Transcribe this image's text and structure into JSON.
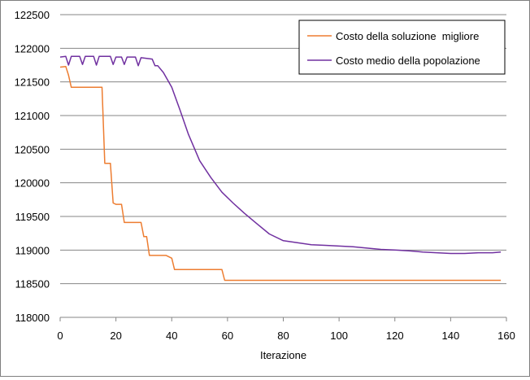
{
  "chart_data": {
    "type": "line",
    "title": "",
    "xlabel": "Iterazione",
    "ylabel": "",
    "xlim": [
      0,
      160
    ],
    "ylim": [
      118000,
      122500
    ],
    "xticks": [
      "0",
      "20",
      "40",
      "60",
      "80",
      "100",
      "120",
      "140",
      "160"
    ],
    "yticks": [
      "118000",
      "118500",
      "119000",
      "119500",
      "120000",
      "120500",
      "121000",
      "121500",
      "122000",
      "122500"
    ],
    "grid": "horizontal",
    "legend_position": "top-right",
    "series": [
      {
        "name": "Costo della soluzione  migliore",
        "color": "#ed7d31",
        "points": [
          [
            0,
            121720
          ],
          [
            2,
            121730
          ],
          [
            3,
            121600
          ],
          [
            4,
            121420
          ],
          [
            15,
            121420
          ],
          [
            16,
            120290
          ],
          [
            18,
            120290
          ],
          [
            19,
            119700
          ],
          [
            20,
            119680
          ],
          [
            22,
            119680
          ],
          [
            23,
            119410
          ],
          [
            29,
            119410
          ],
          [
            30,
            119200
          ],
          [
            31,
            119200
          ],
          [
            32,
            118920
          ],
          [
            38,
            118920
          ],
          [
            40,
            118880
          ],
          [
            41,
            118710
          ],
          [
            58,
            118710
          ],
          [
            59,
            118550
          ],
          [
            158,
            118550
          ]
        ]
      },
      {
        "name": "Costo medio della popolazione",
        "color": "#7030a0",
        "points": [
          [
            0,
            121870
          ],
          [
            2,
            121880
          ],
          [
            3,
            121750
          ],
          [
            4,
            121880
          ],
          [
            7,
            121880
          ],
          [
            8,
            121760
          ],
          [
            9,
            121880
          ],
          [
            12,
            121880
          ],
          [
            13,
            121750
          ],
          [
            14,
            121880
          ],
          [
            18,
            121880
          ],
          [
            19,
            121760
          ],
          [
            20,
            121870
          ],
          [
            22,
            121870
          ],
          [
            23,
            121760
          ],
          [
            24,
            121870
          ],
          [
            27,
            121870
          ],
          [
            28,
            121740
          ],
          [
            29,
            121860
          ],
          [
            33,
            121840
          ],
          [
            34,
            121740
          ],
          [
            35,
            121740
          ],
          [
            37,
            121640
          ],
          [
            40,
            121420
          ],
          [
            43,
            121080
          ],
          [
            46,
            120720
          ],
          [
            50,
            120330
          ],
          [
            54,
            120080
          ],
          [
            58,
            119860
          ],
          [
            62,
            119700
          ],
          [
            66,
            119550
          ],
          [
            70,
            119410
          ],
          [
            75,
            119240
          ],
          [
            80,
            119140
          ],
          [
            85,
            119110
          ],
          [
            90,
            119080
          ],
          [
            95,
            119070
          ],
          [
            100,
            119060
          ],
          [
            105,
            119050
          ],
          [
            110,
            119030
          ],
          [
            115,
            119010
          ],
          [
            120,
            119000
          ],
          [
            125,
            118990
          ],
          [
            130,
            118970
          ],
          [
            135,
            118960
          ],
          [
            140,
            118950
          ],
          [
            145,
            118950
          ],
          [
            150,
            118960
          ],
          [
            155,
            118960
          ],
          [
            158,
            118970
          ]
        ]
      }
    ]
  }
}
